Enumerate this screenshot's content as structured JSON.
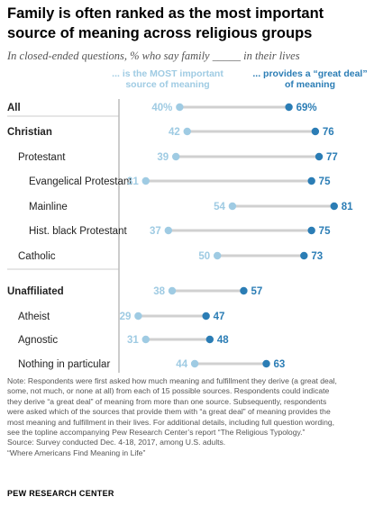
{
  "title": "Family is often ranked as the most important source of meaning across religious groups",
  "subtitle": "In closed-ended questions, % who say family _____ in their lives",
  "colors": {
    "most_important": "#9fcbe3",
    "great_deal": "#2b7db5",
    "connector": "#d0d0d0",
    "divider": "#999999"
  },
  "chart_data": {
    "type": "dot",
    "title": "Family is often ranked as the most important source of meaning across religious groups",
    "xlim": [
      0,
      100
    ],
    "series": [
      {
        "name": "... is the MOST important source of meaning",
        "key": "most_important"
      },
      {
        "name": "... provides a “great deal” of meaning",
        "key": "great_deal"
      }
    ],
    "rows": [
      {
        "label": "All",
        "bold": true,
        "indent": 0,
        "most_important": 40,
        "great_deal": 69,
        "most_label": "40%",
        "great_label": "69%"
      },
      {
        "label": "Christian",
        "bold": true,
        "indent": 0,
        "most_important": 42,
        "great_deal": 76,
        "most_label": "42",
        "great_label": "76"
      },
      {
        "label": "Protestant",
        "bold": false,
        "indent": 1,
        "most_important": 39,
        "great_deal": 77,
        "most_label": "39",
        "great_label": "77"
      },
      {
        "label": "Evangelical Protestant",
        "bold": false,
        "indent": 2,
        "most_important": 31,
        "great_deal": 75,
        "most_label": "31",
        "great_label": "75"
      },
      {
        "label": "Mainline",
        "bold": false,
        "indent": 2,
        "most_important": 54,
        "great_deal": 81,
        "most_label": "54",
        "great_label": "81"
      },
      {
        "label": "Hist. black Protestant",
        "bold": false,
        "indent": 2,
        "most_important": 37,
        "great_deal": 75,
        "most_label": "37",
        "great_label": "75"
      },
      {
        "label": "Catholic",
        "bold": false,
        "indent": 1,
        "most_important": 50,
        "great_deal": 73,
        "most_label": "50",
        "great_label": "73"
      },
      {
        "label": "Unaffiliated",
        "bold": true,
        "indent": 0,
        "most_important": 38,
        "great_deal": 57,
        "most_label": "38",
        "great_label": "57"
      },
      {
        "label": "Atheist",
        "bold": false,
        "indent": 1,
        "most_important": 29,
        "great_deal": 47,
        "most_label": "29",
        "great_label": "47"
      },
      {
        "label": "Agnostic",
        "bold": false,
        "indent": 1,
        "most_important": 31,
        "great_deal": 48,
        "most_label": "31",
        "great_label": "48"
      },
      {
        "label": "Nothing in particular",
        "bold": false,
        "indent": 1,
        "most_important": 44,
        "great_deal": 63,
        "most_label": "44",
        "great_label": "63"
      }
    ]
  },
  "notes": {
    "note_lines": [
      "Note: Respondents were first asked how much meaning and fulfillment they derive (a great deal,",
      "some, not much, or none at all) from each of 15 possible sources. Respondents could indicate",
      "they derive “a great deal” of meaning from more than one source. Subsequently, respondents",
      "were asked which of the sources that provide them with “a great deal” of meaning provides the",
      "most meaning and fulfillment in their lives. For additional details, including full question wording,",
      "see the topline accompanying Pew Research Center’s report “The Religious Typology.”"
    ],
    "source": "Source: Survey conducted Dec. 4-18, 2017, among U.S. adults.",
    "report": "“Where Americans Find Meaning in Life”"
  },
  "footer": "PEW RESEARCH CENTER"
}
